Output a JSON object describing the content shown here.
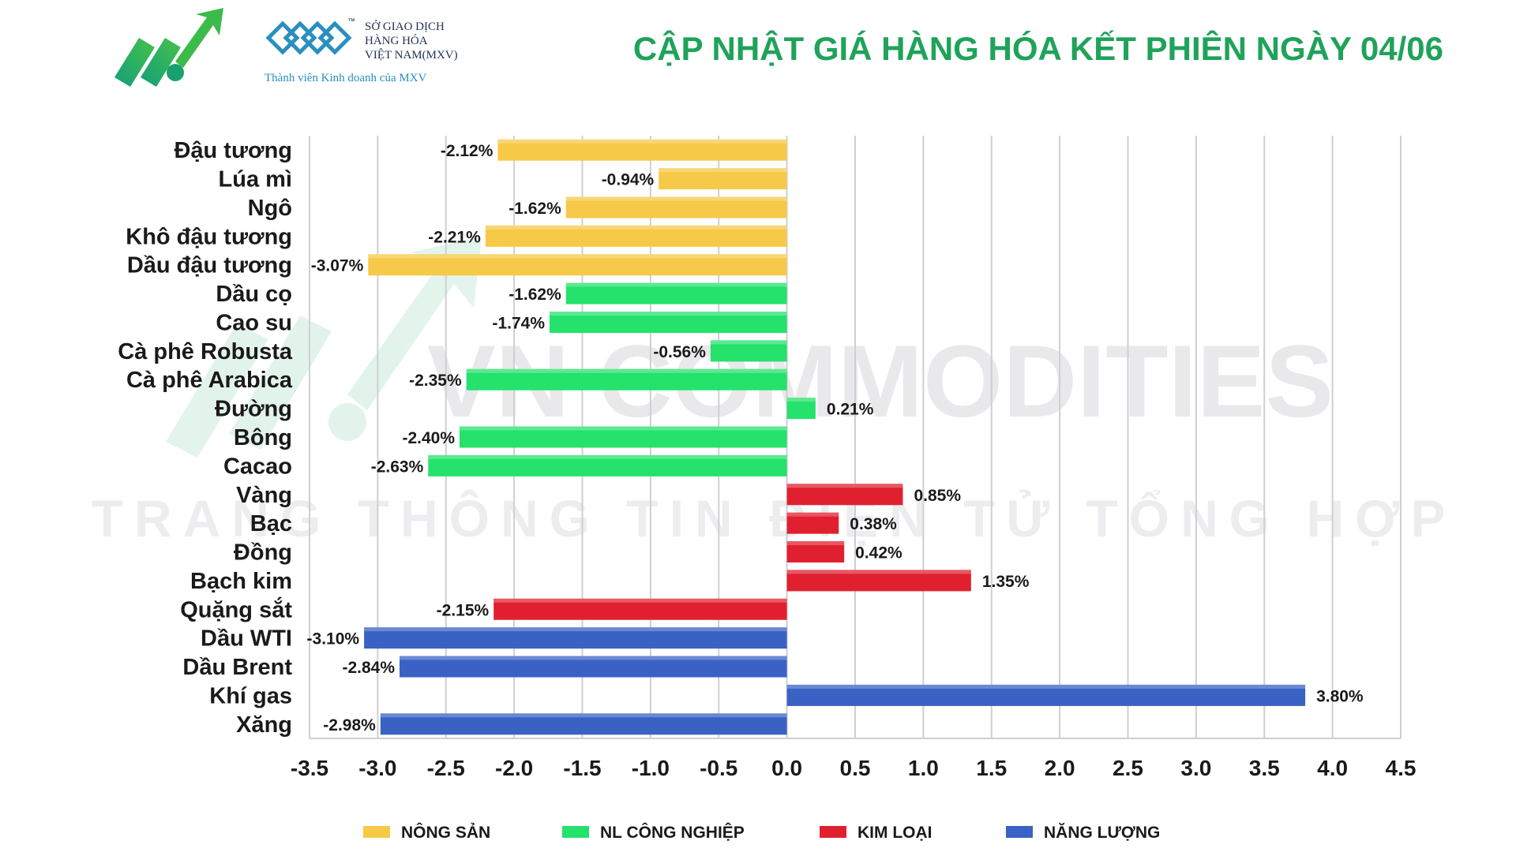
{
  "header": {
    "title": "CẬP NHẬT GIÁ HÀNG HÓA KẾT PHIÊN NGÀY 04/06",
    "mxv_line1": "SỞ GIAO DỊCH",
    "mxv_line2": "HÀNG HÓA",
    "mxv_line3": "VIỆT NAM(MXV)",
    "mxv_member": "Thành viên Kinh doanh của MXV",
    "tm_mark": "™"
  },
  "watermark": {
    "brand": "VN COMMODITIES",
    "tagline": "TRANG THÔNG TIN ĐIỆN TỬ TỔNG HỢP"
  },
  "colors": {
    "title": "#1fa35a",
    "nong_san": "#f7c948",
    "nl_cong_nghiep": "#24e26c",
    "kim_loai": "#e0202f",
    "nang_luong": "#3a62c4",
    "grid": "#cfcfd3"
  },
  "chart_data": {
    "type": "bar",
    "orientation": "horizontal",
    "xlim": [
      -3.5,
      4.5
    ],
    "x_ticks": [
      "-3.5",
      "-3.0",
      "-2.5",
      "-2.0",
      "-1.5",
      "-1.0",
      "-0.5",
      "0.0",
      "0.5",
      "1.0",
      "1.5",
      "2.0",
      "2.5",
      "3.0",
      "3.5",
      "4.0",
      "4.5"
    ],
    "grid": true,
    "legend_position": "bottom",
    "groups": [
      {
        "key": "nong_san",
        "name": "NÔNG SẢN"
      },
      {
        "key": "nl_cong_nghiep",
        "name": "NL CÔNG NGHIỆP"
      },
      {
        "key": "kim_loai",
        "name": "KIM LOẠI"
      },
      {
        "key": "nang_luong",
        "name": "NĂNG LƯỢNG"
      }
    ],
    "bars": [
      {
        "label": "Đậu tương",
        "value": -2.12,
        "text": "-2.12%",
        "group": "nong_san"
      },
      {
        "label": "Lúa mì",
        "value": -0.94,
        "text": "-0.94%",
        "group": "nong_san"
      },
      {
        "label": "Ngô",
        "value": -1.62,
        "text": "-1.62%",
        "group": "nong_san"
      },
      {
        "label": "Khô đậu tương",
        "value": -2.21,
        "text": "-2.21%",
        "group": "nong_san"
      },
      {
        "label": "Dầu đậu tương",
        "value": -3.07,
        "text": "-3.07%",
        "group": "nong_san"
      },
      {
        "label": "Dầu cọ",
        "value": -1.62,
        "text": "-1.62%",
        "group": "nl_cong_nghiep"
      },
      {
        "label": "Cao su",
        "value": -1.74,
        "text": "-1.74%",
        "group": "nl_cong_nghiep"
      },
      {
        "label": "Cà phê Robusta",
        "value": -0.56,
        "text": "-0.56%",
        "group": "nl_cong_nghiep"
      },
      {
        "label": "Cà phê Arabica",
        "value": -2.35,
        "text": "-2.35%",
        "group": "nl_cong_nghiep"
      },
      {
        "label": "Đường",
        "value": 0.21,
        "text": "0.21%",
        "group": "nl_cong_nghiep"
      },
      {
        "label": "Bông",
        "value": -2.4,
        "text": "-2.40%",
        "group": "nl_cong_nghiep"
      },
      {
        "label": "Cacao",
        "value": -2.63,
        "text": "-2.63%",
        "group": "nl_cong_nghiep"
      },
      {
        "label": "Vàng",
        "value": 0.85,
        "text": "0.85%",
        "group": "kim_loai"
      },
      {
        "label": "Bạc",
        "value": 0.38,
        "text": "0.38%",
        "group": "kim_loai"
      },
      {
        "label": "Đồng",
        "value": 0.42,
        "text": "0.42%",
        "group": "kim_loai"
      },
      {
        "label": "Bạch kim",
        "value": 1.35,
        "text": "1.35%",
        "group": "kim_loai"
      },
      {
        "label": "Quặng sắt",
        "value": -2.15,
        "text": "-2.15%",
        "group": "kim_loai"
      },
      {
        "label": "Dầu WTI",
        "value": -3.1,
        "text": "-3.10%",
        "group": "nang_luong"
      },
      {
        "label": "Dầu Brent",
        "value": -2.84,
        "text": "-2.84%",
        "group": "nang_luong"
      },
      {
        "label": "Khí gas",
        "value": 3.8,
        "text": "3.80%",
        "group": "nang_luong"
      },
      {
        "label": "Xăng",
        "value": -2.98,
        "text": "-2.98%",
        "group": "nang_luong"
      }
    ]
  }
}
